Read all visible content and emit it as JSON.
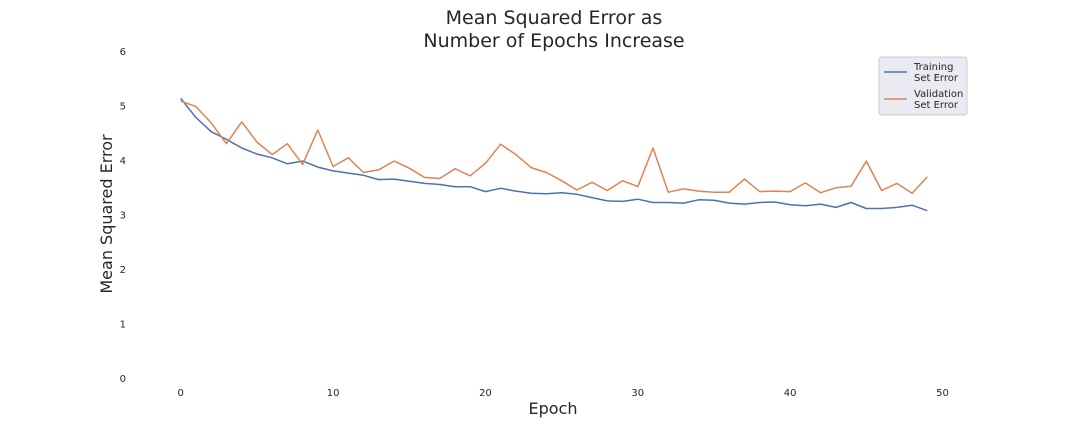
{
  "chart_data": {
    "type": "line",
    "title_lines": [
      "Mean Squared Error as",
      "Number of Epochs Increase"
    ],
    "xlabel": "Epoch",
    "ylabel": "Mean Squared Error",
    "xlim": [
      -3,
      52
    ],
    "ylim": [
      0,
      6
    ],
    "xticks": [
      0,
      10,
      20,
      30,
      40,
      50
    ],
    "yticks": [
      0,
      1,
      2,
      3,
      4,
      5,
      6
    ],
    "grid": false,
    "legend_position": "top-right",
    "x": [
      0,
      1,
      2,
      3,
      4,
      5,
      6,
      7,
      8,
      9,
      10,
      11,
      12,
      13,
      14,
      15,
      16,
      17,
      18,
      19,
      20,
      21,
      22,
      23,
      24,
      25,
      26,
      27,
      28,
      29,
      30,
      31,
      32,
      33,
      34,
      35,
      36,
      37,
      38,
      39,
      40,
      41,
      42,
      43,
      44,
      45,
      46,
      47,
      48,
      49
    ],
    "series": [
      {
        "name_lines": [
          "Training",
          "Set Error"
        ],
        "color": "#4c72b0",
        "values": [
          5.13,
          4.78,
          4.52,
          4.38,
          4.22,
          4.11,
          4.04,
          3.93,
          3.98,
          3.87,
          3.8,
          3.76,
          3.72,
          3.64,
          3.65,
          3.61,
          3.57,
          3.55,
          3.51,
          3.51,
          3.42,
          3.48,
          3.43,
          3.39,
          3.38,
          3.4,
          3.37,
          3.31,
          3.25,
          3.24,
          3.28,
          3.22,
          3.22,
          3.21,
          3.27,
          3.26,
          3.21,
          3.19,
          3.22,
          3.23,
          3.18,
          3.16,
          3.19,
          3.13,
          3.22,
          3.11,
          3.11,
          3.13,
          3.17,
          3.07
        ]
      },
      {
        "name_lines": [
          "Validation",
          "Set Error"
        ],
        "color": "#dd8452",
        "values": [
          5.08,
          4.98,
          4.68,
          4.3,
          4.7,
          4.33,
          4.1,
          4.3,
          3.92,
          4.55,
          3.88,
          4.04,
          3.77,
          3.82,
          3.98,
          3.85,
          3.68,
          3.66,
          3.84,
          3.71,
          3.94,
          4.29,
          4.1,
          3.86,
          3.77,
          3.62,
          3.45,
          3.59,
          3.44,
          3.62,
          3.51,
          4.22,
          3.41,
          3.47,
          3.43,
          3.41,
          3.41,
          3.65,
          3.42,
          3.43,
          3.42,
          3.58,
          3.4,
          3.49,
          3.52,
          3.98,
          3.44,
          3.57,
          3.39,
          3.69
        ]
      }
    ]
  }
}
